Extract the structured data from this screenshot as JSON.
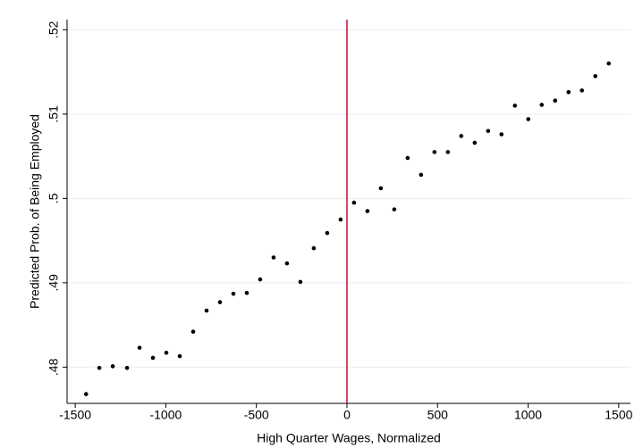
{
  "chart_data": {
    "type": "scatter",
    "x_label": "High Quarter Wages, Normalized",
    "y_label": "Predicted Prob. of Being Employed",
    "x": [
      -1440,
      -1367,
      -1293,
      -1214,
      -1145,
      -1071,
      -997,
      -923,
      -849,
      -775,
      -701,
      -627,
      -553,
      -479,
      -405,
      -331,
      -257,
      -183,
      -109,
      -35,
      39,
      113,
      187,
      261,
      335,
      409,
      483,
      557,
      631,
      705,
      779,
      853,
      927,
      1001,
      1075,
      1149,
      1223,
      1297,
      1371,
      1445
    ],
    "values": [
      0.4768,
      0.4799,
      0.4801,
      0.4799,
      0.4823,
      0.4811,
      0.4817,
      0.4813,
      0.4842,
      0.4867,
      0.4877,
      0.4887,
      0.4888,
      0.4904,
      0.493,
      0.4923,
      0.4901,
      0.4941,
      0.4959,
      0.4975,
      0.4995,
      0.4985,
      0.5012,
      0.4987,
      0.5048,
      0.5028,
      0.5055,
      0.5055,
      0.5074,
      0.5066,
      0.508,
      0.5076,
      0.511,
      0.5094,
      0.5111,
      0.5116,
      0.5126,
      0.5128,
      0.5145,
      0.516
    ],
    "color": "#000000",
    "xlim": [
      -1545,
      1565
    ],
    "ylim": [
      0.4757,
      0.5212
    ],
    "xticks": [
      -1500,
      -1000,
      -500,
      0,
      500,
      1000,
      1500
    ],
    "yticks": [
      {
        "value": 0.48,
        "label": ".48"
      },
      {
        "value": 0.49,
        "label": ".49"
      },
      {
        "value": 0.5,
        "label": ".5"
      },
      {
        "value": 0.51,
        "label": ".51"
      },
      {
        "value": 0.52,
        "label": ".52"
      }
    ],
    "vline": 0,
    "vline_color": "#c8102e",
    "grid": true
  }
}
